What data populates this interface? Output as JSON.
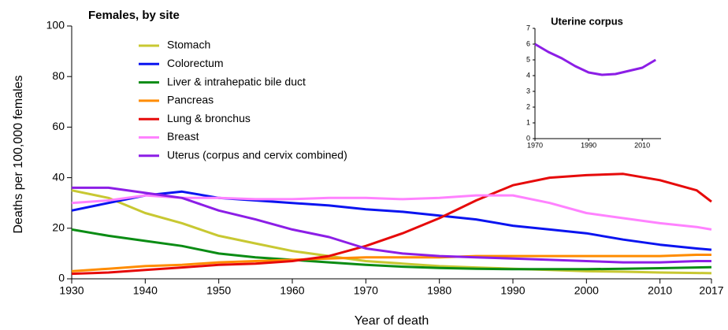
{
  "chart_data": [
    {
      "type": "line",
      "title": "Females, by site",
      "x_label": "Year of death",
      "y_label": "Deaths per 100,000 females",
      "x": [
        1930,
        1935,
        1940,
        1945,
        1950,
        1955,
        1960,
        1965,
        1970,
        1975,
        1980,
        1985,
        1990,
        1995,
        2000,
        2005,
        2010,
        2015,
        2017
      ],
      "xlim": [
        1930,
        2017
      ],
      "xticks": [
        1930,
        1940,
        1950,
        1960,
        1970,
        1980,
        1990,
        2000,
        2010,
        2017
      ],
      "ylim": [
        0,
        100
      ],
      "yticks": [
        0,
        20,
        40,
        60,
        80,
        100
      ],
      "series": [
        {
          "name": "Stomach",
          "color": "#c8c832",
          "values": [
            35,
            32,
            26,
            22,
            17,
            14,
            11,
            9,
            7,
            6,
            5,
            4.5,
            4,
            3.5,
            3,
            2.8,
            2.5,
            2.3,
            2.2
          ]
        },
        {
          "name": "Colorectum",
          "color": "#0a14f0",
          "values": [
            27,
            30,
            33,
            34.5,
            32,
            31,
            30,
            29,
            27.5,
            26.5,
            25,
            23.5,
            21,
            19.5,
            18,
            15.5,
            13.5,
            12,
            11.5
          ]
        },
        {
          "name": "Liver & intrahepatic bile duct",
          "color": "#0a8c14",
          "values": [
            19.5,
            17,
            15,
            13,
            10,
            8.5,
            7.5,
            6.5,
            5.5,
            4.8,
            4.3,
            4,
            3.8,
            3.8,
            3.8,
            4,
            4.2,
            4.5,
            4.6
          ]
        },
        {
          "name": "Pancreas",
          "color": "#ff8c00",
          "values": [
            3,
            4,
            5,
            5.5,
            6.5,
            7,
            7.5,
            8,
            8.5,
            8.5,
            8.5,
            9,
            9,
            9,
            9,
            9,
            9,
            9.5,
            9.5
          ]
        },
        {
          "name": "Lung & bronchus",
          "color": "#e60a0a",
          "values": [
            2,
            2.5,
            3.5,
            4.5,
            5.5,
            6,
            7,
            9,
            13,
            18,
            24,
            31,
            37,
            40,
            41,
            41.5,
            39,
            35,
            30.5
          ]
        },
        {
          "name": "Breast",
          "color": "#ff82ff",
          "values": [
            30,
            31,
            33,
            32,
            32,
            31.5,
            31.5,
            32,
            32,
            31.5,
            32,
            33,
            33,
            30,
            26,
            24,
            22,
            20.5,
            19.5
          ]
        },
        {
          "name": "Uterus (corpus and cervix combined)",
          "color": "#8c1ee6",
          "values": [
            36,
            36,
            34,
            32,
            27,
            23.5,
            19.5,
            16.5,
            12,
            10,
            9,
            8.5,
            8,
            7.5,
            7,
            6.5,
            6.5,
            7,
            7
          ]
        }
      ]
    },
    {
      "type": "line",
      "title": "Uterine corpus",
      "x": [
        1970,
        1975,
        1980,
        1985,
        1990,
        1995,
        2000,
        2005,
        2010,
        2015
      ],
      "xlim": [
        1970,
        2017
      ],
      "xticks": [
        1970,
        1990,
        2010
      ],
      "ylim": [
        0,
        7
      ],
      "yticks": [
        0,
        1,
        2,
        3,
        4,
        5,
        6,
        7
      ],
      "series": [
        {
          "name": "Uterine corpus",
          "color": "#8c1ee6",
          "values": [
            6,
            5.5,
            5.1,
            4.6,
            4.2,
            4.05,
            4.1,
            4.3,
            4.5,
            5.0
          ]
        }
      ]
    }
  ]
}
